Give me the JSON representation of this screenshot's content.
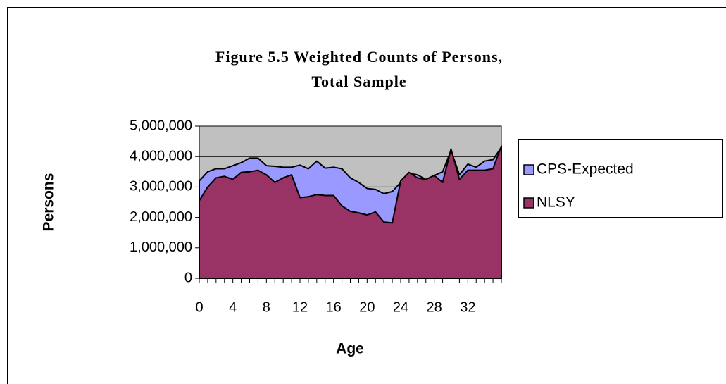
{
  "chart_data": {
    "type": "area",
    "title": "Figure 5.5 Weighted Counts of Persons,",
    "subtitle": "Total Sample",
    "x_label": "Age",
    "y_label": "Persons",
    "categories": [
      "0",
      null,
      null,
      null,
      "4",
      null,
      null,
      null,
      "8",
      null,
      null,
      null,
      "12",
      null,
      null,
      null,
      "16",
      null,
      null,
      null,
      "20",
      null,
      null,
      null,
      "24",
      null,
      null,
      null,
      "28",
      null,
      null,
      null,
      "32",
      null,
      null,
      null,
      null
    ],
    "series": [
      {
        "name": "CPS-Expected",
        "color": "#9999ff",
        "values": [
          3200000,
          3500000,
          3600000,
          3600000,
          3700000,
          3800000,
          3950000,
          3950000,
          3700000,
          3680000,
          3650000,
          3650000,
          3720000,
          3600000,
          3850000,
          3620000,
          3650000,
          3600000,
          3300000,
          3150000,
          2950000,
          2920000,
          2780000,
          2850000,
          3150000,
          3450000,
          3400000,
          3250000,
          3380000,
          3500000,
          4200000,
          3400000,
          3750000,
          3650000,
          3850000,
          3900000,
          4300000
        ]
      },
      {
        "name": "NLSY",
        "color": "#993366",
        "values": [
          2550000,
          3000000,
          3300000,
          3350000,
          3250000,
          3480000,
          3500000,
          3550000,
          3400000,
          3150000,
          3300000,
          3400000,
          2650000,
          2680000,
          2750000,
          2720000,
          2720000,
          2380000,
          2200000,
          2150000,
          2080000,
          2180000,
          1850000,
          1820000,
          3200000,
          3480000,
          3300000,
          3250000,
          3380000,
          3150000,
          4250000,
          3250000,
          3550000,
          3550000,
          3550000,
          3600000,
          4350000
        ]
      }
    ],
    "ylim": [
      0,
      5000000
    ],
    "yticks": [
      0,
      {
        "value": 1000000,
        "label": "1,000,000"
      },
      {
        "value": 2000000,
        "label": "2,000,000"
      },
      {
        "value": 3000000,
        "label": "3,000,000"
      },
      {
        "value": 4000000,
        "label": "4,000,000"
      },
      {
        "value": 5000000,
        "label": "5,000,000"
      }
    ],
    "grid": true,
    "legend": "right"
  }
}
